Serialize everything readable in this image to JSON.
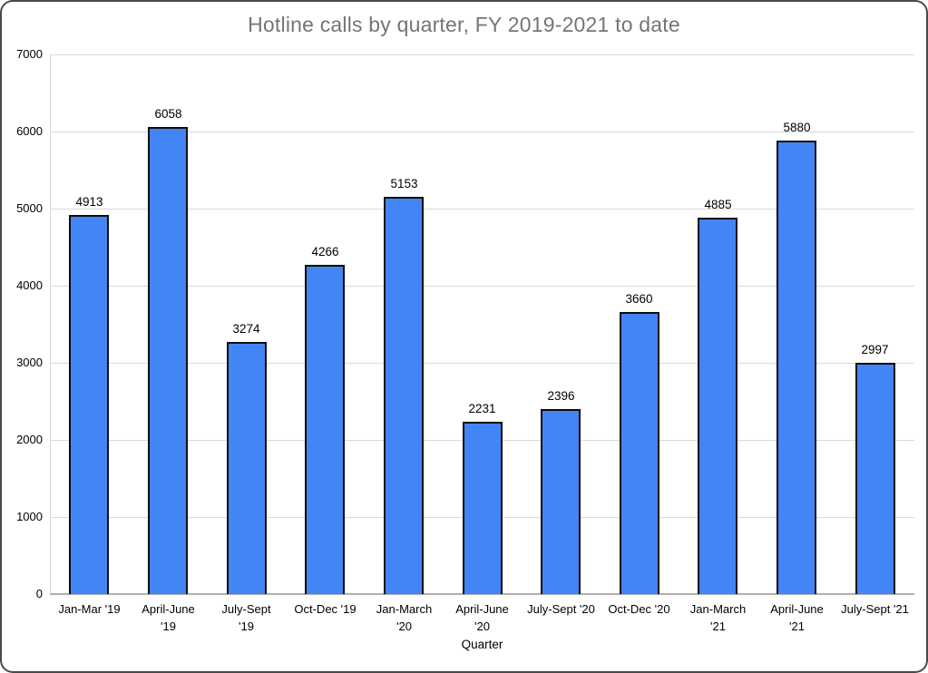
{
  "chart_data": {
    "type": "bar",
    "title": "Hotline calls by quarter, FY 2019-2021 to date",
    "xlabel": "Quarter",
    "ylabel": "",
    "categories": [
      "Jan-Mar '19",
      "April-June '19",
      "July-Sept '19",
      "Oct-Dec '19",
      "Jan-March '20",
      "April-June '20",
      "July-Sept '20",
      "Oct-Dec '20",
      "Jan-March '21",
      "April-June '21",
      "July-Sept '21"
    ],
    "tick_label_lines": [
      [
        "Jan-Mar '19"
      ],
      [
        "April-June",
        "'19"
      ],
      [
        "July-Sept",
        "'19"
      ],
      [
        "Oct-Dec '19"
      ],
      [
        "Jan-March",
        "'20"
      ],
      [
        "April-June",
        "'20"
      ],
      [
        "July-Sept '20"
      ],
      [
        "Oct-Dec '20"
      ],
      [
        "Jan-March",
        "'21"
      ],
      [
        "April-June",
        "'21"
      ],
      [
        "July-Sept '21"
      ]
    ],
    "values": [
      4913,
      6058,
      3274,
      4266,
      5153,
      2231,
      2396,
      3660,
      4885,
      5880,
      2997
    ],
    "value_labels_shown": true,
    "ylim": [
      0,
      7000
    ],
    "yticks": [
      0,
      1000,
      2000,
      3000,
      4000,
      5000,
      6000,
      7000
    ],
    "grid": true,
    "legend_position": "none",
    "colors": {
      "bar_fill": "#4285f4",
      "bar_border": "#0d0d0d",
      "title_text": "#757575",
      "gridline": "#d9d9d9",
      "axis_line": "#b0b0b0",
      "label_text": "#000000"
    }
  }
}
